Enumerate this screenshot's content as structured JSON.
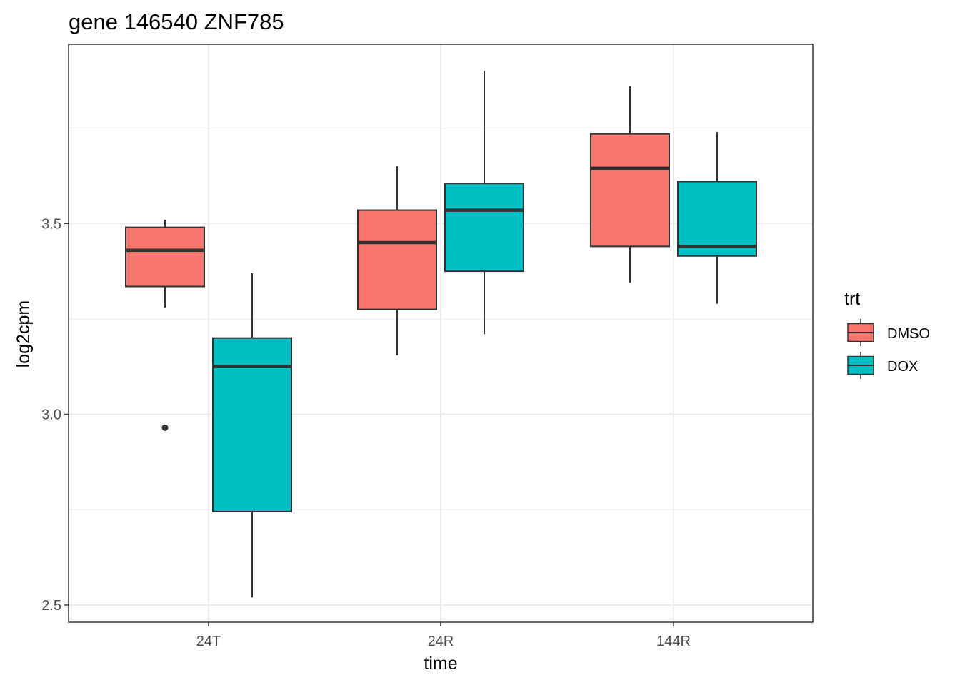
{
  "chart_data": {
    "type": "boxplot",
    "title": "gene 146540 ZNF785",
    "xlabel": "time",
    "ylabel": "log2cpm",
    "categories": [
      "24T",
      "24R",
      "144R"
    ],
    "yticks": [
      "2.5",
      "3.0",
      "3.5"
    ],
    "ylim": [
      2.455,
      3.97
    ],
    "grid": true,
    "legend": {
      "title": "trt",
      "placement": "right",
      "entries": [
        "DMSO",
        "DOX"
      ]
    },
    "colors": {
      "DMSO": "#F8766D",
      "DOX": "#00BFC4",
      "box_outline": "#333333",
      "grid": "#ebebeb",
      "panel_border": "#333333"
    },
    "series": [
      {
        "name": "DMSO",
        "boxes": [
          {
            "category": "24T",
            "whisker_low": 3.28,
            "q1": 3.335,
            "median": 3.43,
            "q3": 3.49,
            "whisker_high": 3.51,
            "outliers": [
              2.965
            ]
          },
          {
            "category": "24R",
            "whisker_low": 3.155,
            "q1": 3.275,
            "median": 3.45,
            "q3": 3.535,
            "whisker_high": 3.65,
            "outliers": []
          },
          {
            "category": "144R",
            "whisker_low": 3.345,
            "q1": 3.44,
            "median": 3.645,
            "q3": 3.735,
            "whisker_high": 3.86,
            "outliers": []
          }
        ]
      },
      {
        "name": "DOX",
        "boxes": [
          {
            "category": "24T",
            "whisker_low": 2.52,
            "q1": 2.745,
            "median": 3.125,
            "q3": 3.2,
            "whisker_high": 3.37,
            "outliers": []
          },
          {
            "category": "24R",
            "whisker_low": 3.21,
            "q1": 3.375,
            "median": 3.535,
            "q3": 3.605,
            "whisker_high": 3.9,
            "outliers": []
          },
          {
            "category": "144R",
            "whisker_low": 3.29,
            "q1": 3.415,
            "median": 3.44,
            "q3": 3.61,
            "whisker_high": 3.74,
            "outliers": []
          }
        ]
      }
    ]
  }
}
